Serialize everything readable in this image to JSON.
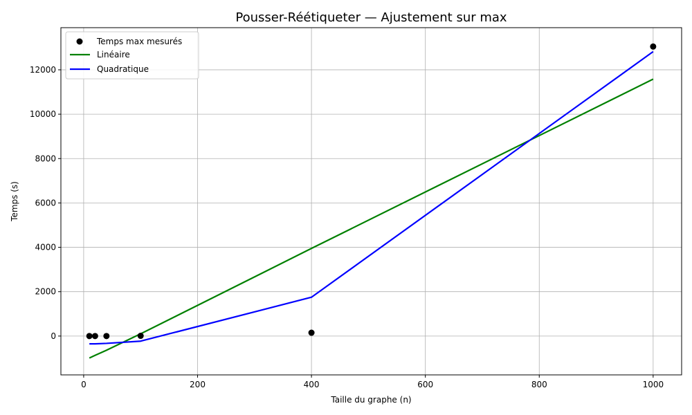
{
  "chart_data": {
    "type": "line",
    "title": "Pousser-Réétiqueter — Ajustement sur max",
    "xlabel": "Taille du graphe (n)",
    "ylabel": "Temps (s)",
    "xlim": [
      -40,
      1050
    ],
    "ylim": [
      -1750,
      13900
    ],
    "xticks": [
      0,
      200,
      400,
      600,
      800,
      1000
    ],
    "yticks": [
      0,
      2000,
      4000,
      6000,
      8000,
      10000,
      12000
    ],
    "grid": true,
    "legend_position": "top-left",
    "scatter": {
      "name": "Temps max mesurés",
      "color": "#000000",
      "x": [
        10,
        20,
        40,
        100,
        400,
        1000
      ],
      "y": [
        0,
        0,
        0,
        10,
        150,
        13050
      ]
    },
    "series": [
      {
        "name": "Linéaire",
        "color": "#008000",
        "x": [
          10,
          20,
          40,
          100,
          400,
          1000
        ],
        "y": [
          -990,
          -870,
          -640,
          100,
          3950,
          11580
        ]
      },
      {
        "name": "Quadratique",
        "color": "#0000ff",
        "x": [
          10,
          20,
          40,
          100,
          400,
          1000
        ],
        "y": [
          -350,
          -350,
          -330,
          -230,
          1750,
          12820
        ]
      }
    ]
  }
}
